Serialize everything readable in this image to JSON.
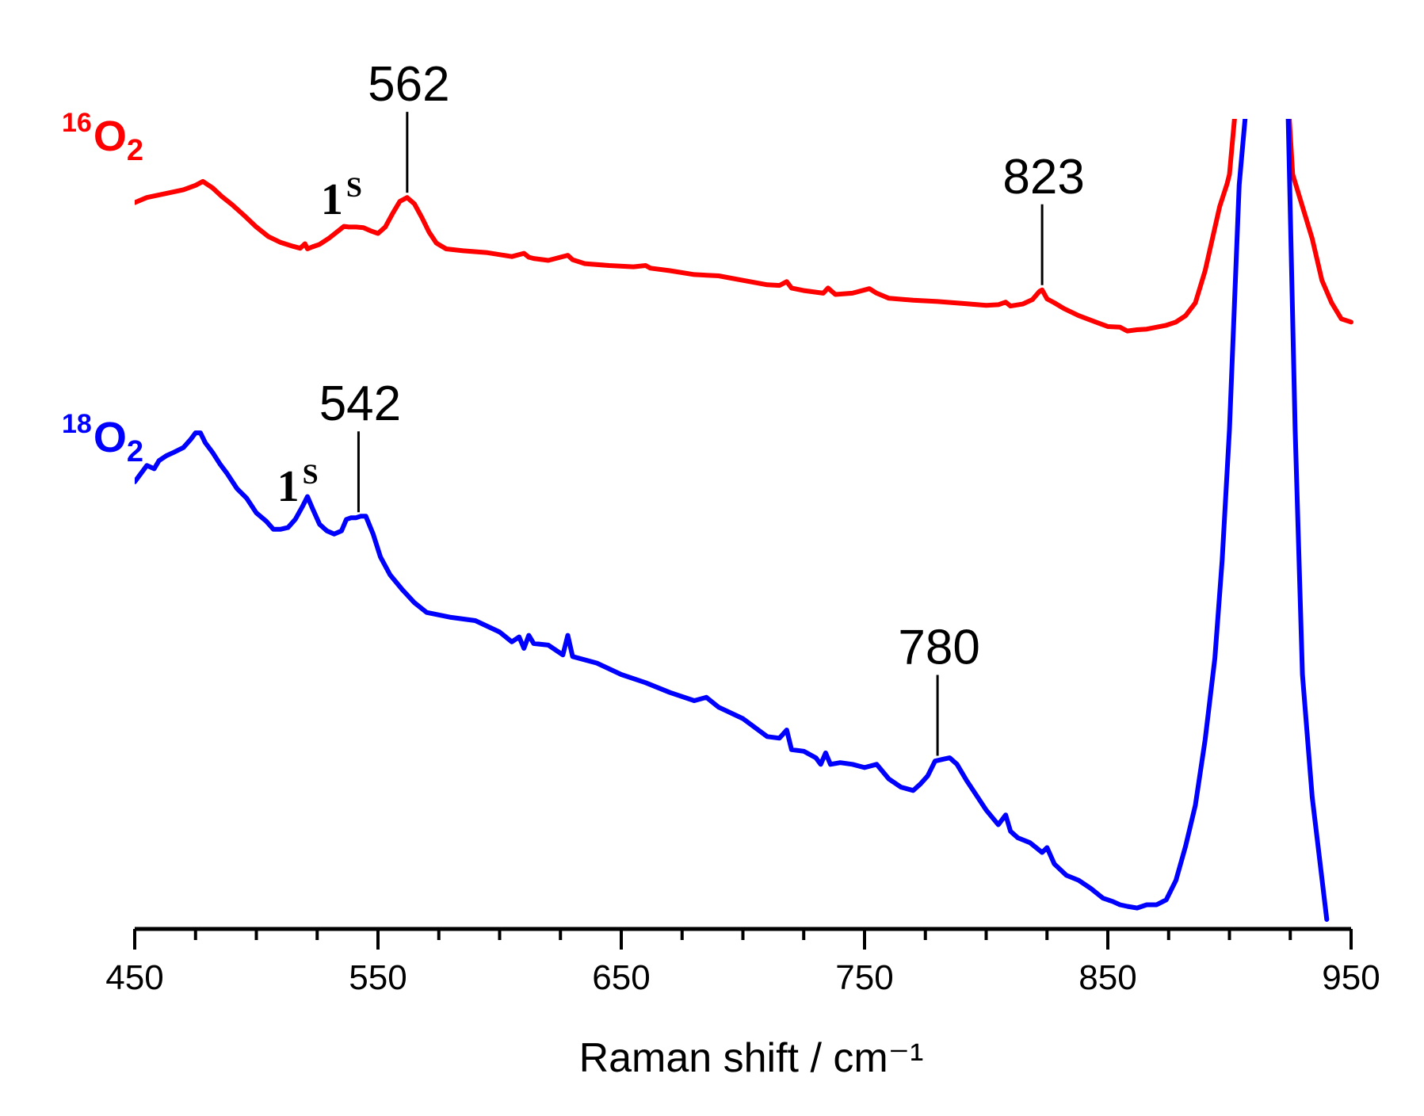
{
  "chart_data": {
    "type": "line",
    "xlabel": "Raman shift / cm⁻¹",
    "ylabel": "",
    "xlim": [
      450,
      950
    ],
    "ylim": [
      0,
      100
    ],
    "xticks": [
      "450",
      "550",
      "650",
      "750",
      "850",
      "950"
    ],
    "grid": false,
    "y_axis_shown": false,
    "series": [
      {
        "name_prefix": "16",
        "name_main": "O",
        "name_sub": "2",
        "color": "#ff0000",
        "x": [
          450,
          455,
          460,
          465,
          470,
          475,
          478,
          482,
          486,
          490,
          495,
          500,
          505,
          510,
          515,
          518,
          520,
          521,
          523,
          526,
          530,
          534,
          536,
          538,
          541,
          544,
          547,
          550,
          553,
          556,
          559,
          562,
          565,
          568,
          571,
          574,
          578,
          585,
          595,
          605,
          610,
          612,
          614,
          620,
          628,
          630,
          635,
          645,
          655,
          660,
          662,
          670,
          680,
          690,
          700,
          710,
          715,
          718,
          720,
          725,
          733,
          735,
          738,
          745,
          752,
          755,
          760,
          770,
          780,
          790,
          800,
          805,
          808,
          810,
          815,
          819,
          822,
          823,
          825,
          828,
          832,
          838,
          845,
          850,
          855,
          858,
          862,
          866,
          870,
          874,
          878,
          882,
          886,
          890,
          893,
          896,
          899,
          900
        ],
        "y": [
          91.2,
          92.8,
          93.6,
          94.4,
          95.2,
          96.6,
          97.8,
          95.8,
          93.0,
          90.6,
          87.2,
          83.6,
          80.6,
          78.8,
          77.6,
          77.0,
          78.4,
          76.8,
          77.4,
          78.2,
          80.2,
          82.6,
          83.8,
          83.6,
          83.6,
          83.4,
          82.4,
          81.6,
          83.6,
          87.8,
          91.6,
          92.8,
          90.8,
          86.6,
          82.0,
          78.6,
          76.8,
          76.2,
          75.6,
          74.4,
          75.4,
          74.2,
          73.8,
          73.2,
          74.8,
          73.4,
          72.2,
          71.6,
          71.2,
          71.6,
          70.8,
          70.0,
          68.8,
          68.4,
          67.0,
          65.6,
          65.4,
          66.6,
          64.6,
          63.8,
          63.0,
          64.6,
          62.6,
          63.0,
          64.4,
          63.0,
          61.4,
          60.8,
          60.4,
          59.8,
          59.2,
          59.4,
          60.2,
          59.0,
          59.6,
          61.0,
          63.6,
          64.0,
          61.2,
          60.0,
          58.2,
          56.0,
          54.0,
          52.6,
          52.4,
          51.2,
          51.6,
          51.8,
          52.4,
          53.0,
          54.0,
          56.0,
          60.0,
          70.0,
          80.0,
          90.0,
          97.0,
          100.0
        ]
      },
      {
        "name_prefix": "18",
        "name_main": "O",
        "name_sub": "2",
        "color": "#0000ff",
        "x": [
          450,
          453,
          455,
          458,
          460,
          463,
          466,
          470,
          473,
          475,
          477,
          479,
          482,
          485,
          488,
          492,
          496,
          500,
          504,
          507,
          510,
          513,
          516,
          519,
          521,
          523,
          526,
          529,
          532,
          535,
          537,
          539,
          541,
          543,
          545,
          548,
          551,
          555,
          560,
          565,
          570,
          580,
          590,
          600,
          605,
          608,
          610,
          612,
          614,
          620,
          626,
          628,
          630,
          640,
          650,
          660,
          670,
          680,
          685,
          690,
          700,
          710,
          715,
          718,
          720,
          725,
          730,
          732,
          734,
          736,
          740,
          745,
          750,
          755,
          760,
          765,
          770,
          773,
          776,
          779,
          782,
          785,
          788,
          792,
          796,
          800,
          805,
          808,
          810,
          813,
          818,
          823,
          825,
          828,
          833,
          838,
          843,
          848,
          852,
          855,
          858,
          862,
          866,
          870,
          874,
          878,
          882,
          886,
          890,
          894,
          897,
          900
        ],
        "y": [
          53.6,
          54.8,
          55.6,
          55.2,
          56.2,
          56.8,
          57.2,
          57.8,
          58.8,
          59.6,
          59.6,
          58.4,
          57.2,
          55.8,
          54.6,
          52.8,
          51.6,
          49.8,
          48.8,
          47.8,
          47.8,
          48.0,
          49.0,
          50.6,
          51.8,
          50.4,
          48.4,
          47.6,
          47.2,
          47.6,
          49.0,
          49.2,
          49.2,
          49.4,
          49.4,
          47.2,
          44.4,
          42.2,
          40.4,
          38.8,
          37.6,
          37.0,
          36.6,
          35.2,
          34.0,
          34.6,
          33.2,
          34.8,
          33.8,
          33.6,
          32.4,
          34.8,
          32.2,
          31.4,
          30.0,
          29.0,
          27.8,
          26.8,
          27.2,
          26.0,
          24.6,
          22.4,
          22.2,
          23.2,
          20.8,
          20.6,
          19.8,
          19.0,
          20.4,
          19.0,
          19.2,
          19.0,
          18.6,
          19.0,
          17.2,
          16.2,
          15.8,
          16.6,
          17.6,
          19.4,
          19.6,
          19.8,
          19.0,
          17.0,
          15.2,
          13.4,
          11.6,
          12.8,
          10.8,
          10.0,
          9.4,
          8.2,
          8.8,
          6.8,
          5.4,
          4.8,
          3.8,
          2.6,
          2.2,
          1.8,
          1.6,
          1.4,
          1.8,
          1.8,
          2.4,
          4.8,
          9.0,
          14.0,
          22.0,
          32.0,
          44.0,
          60.0
        ]
      }
    ],
    "peaks": [
      {
        "label": "562",
        "x": 562,
        "series": 0
      },
      {
        "label": "823",
        "x": 823,
        "series": 0
      },
      {
        "label": "542",
        "x": 542,
        "series": 1
      },
      {
        "label": "780",
        "x": 780,
        "series": 1
      }
    ],
    "annotations": [
      {
        "main": "1",
        "sup": "S",
        "x": 535,
        "series": 0
      },
      {
        "main": "1",
        "sup": "S",
        "x": 517,
        "series": 1
      }
    ],
    "off_scale_band": {
      "series0_x": [
        900,
        906,
        912,
        918,
        922,
        926,
        930,
        934,
        938,
        942,
        946,
        950
      ],
      "series0_y": [
        100,
        150,
        200,
        200,
        150,
        100,
        90,
        80,
        67,
        60,
        55,
        54
      ],
      "series1_x": [
        900,
        904,
        907,
        910,
        914,
        918,
        921,
        924,
        927,
        930,
        934,
        938,
        940
      ],
      "series1_y": [
        60,
        90,
        100,
        125,
        140,
        140,
        125,
        100,
        60,
        30,
        15,
        5,
        0
      ]
    }
  }
}
